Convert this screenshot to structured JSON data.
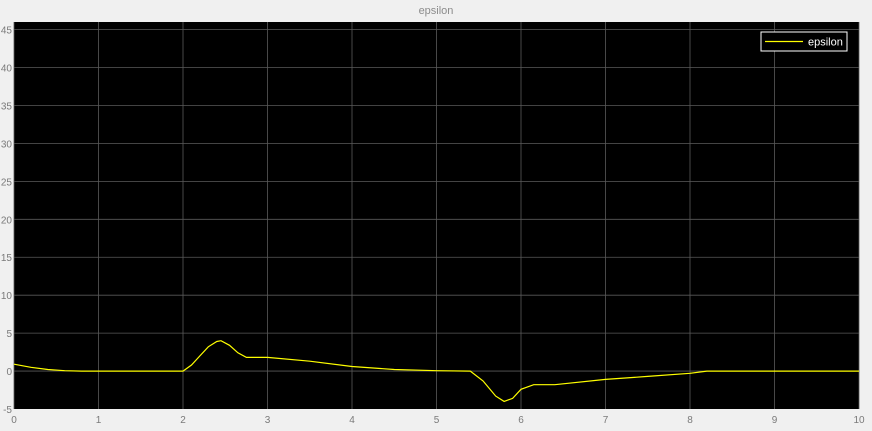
{
  "chart_data": {
    "type": "line",
    "title": "epsilon",
    "xlabel": "",
    "ylabel": "",
    "xlim": [
      0,
      10
    ],
    "ylim": [
      -5,
      46
    ],
    "xticks": [
      0,
      1,
      2,
      3,
      4,
      5,
      6,
      7,
      8,
      9,
      10
    ],
    "yticks": [
      -5,
      0,
      5,
      10,
      15,
      20,
      25,
      30,
      35,
      40,
      45
    ],
    "grid": true,
    "legend_position": "top-right",
    "background": "#000000",
    "grid_color": "#5a5a5a",
    "series": [
      {
        "name": "epsilon",
        "color": "#ffff00",
        "x": [
          0,
          0.2,
          0.4,
          0.6,
          0.8,
          1.0,
          1.5,
          2.0,
          2.1,
          2.2,
          2.3,
          2.4,
          2.45,
          2.55,
          2.65,
          2.75,
          3.0,
          3.5,
          4.0,
          4.5,
          5.0,
          5.4,
          5.55,
          5.7,
          5.8,
          5.9,
          6.0,
          6.15,
          6.4,
          7.0,
          7.5,
          8.0,
          8.2,
          9.0,
          10.0
        ],
        "values": [
          0.9,
          0.5,
          0.2,
          0.05,
          0.0,
          0.0,
          0.0,
          0.0,
          0.8,
          2.0,
          3.2,
          3.9,
          4.0,
          3.4,
          2.4,
          1.8,
          1.8,
          1.3,
          0.6,
          0.2,
          0.05,
          0.0,
          -1.3,
          -3.3,
          -4.0,
          -3.6,
          -2.4,
          -1.8,
          -1.8,
          -1.1,
          -0.7,
          -0.3,
          0.0,
          0.0,
          0.0
        ]
      }
    ]
  }
}
